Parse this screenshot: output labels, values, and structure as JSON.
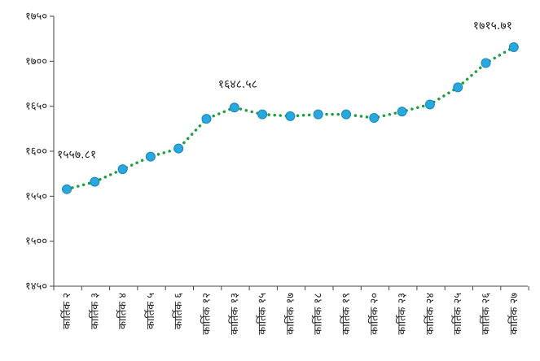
{
  "chart_data": {
    "type": "line",
    "title": "",
    "xlabel": "",
    "ylabel": "",
    "ylim": [
      1450,
      1750
    ],
    "yticks": [
      1450,
      1500,
      1550,
      1600,
      1650,
      1700,
      1750
    ],
    "ytick_labels": [
      "१४५०",
      "१५००",
      "१५५०",
      "१६००",
      "१६५०",
      "१७००",
      "१७५०"
    ],
    "categories": [
      "कार्तिक २",
      "कार्तिक ३",
      "कार्तिक ४",
      "कार्तिक ५",
      "कार्तिक ६",
      "कार्तिक १२",
      "कार्तिक १३",
      "कार्तिक १५",
      "कार्तिक १७",
      "कार्तिक १८",
      "कार्तिक १९",
      "कार्तिक २०",
      "कार्तिक २३",
      "कार्तिक २४",
      "कार्तिक २५",
      "कार्तिक २६",
      "कार्तिक २७"
    ],
    "series": [
      {
        "values": [
          1557.81,
          1566,
          1580,
          1594,
          1603,
          1636,
          1648.58,
          1641,
          1639,
          1641,
          1641,
          1637,
          1644,
          1652,
          1671,
          1698,
          1715.71
        ],
        "line_color": "#1e9e3e",
        "line_style": "dotted",
        "marker_color": "#29a8e0"
      }
    ],
    "annotations": [
      {
        "index": 0,
        "text": "१५५७.८१"
      },
      {
        "index": 6,
        "text": "१६४८.५८"
      },
      {
        "index": 16,
        "text": "१७१५.७१"
      }
    ],
    "grid": false
  }
}
